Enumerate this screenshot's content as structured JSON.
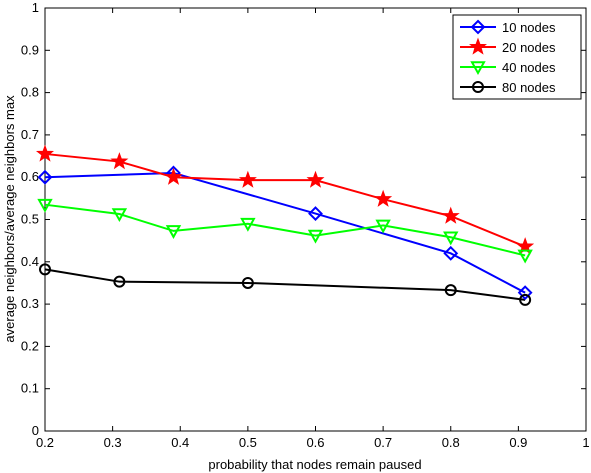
{
  "chart_data": {
    "type": "line",
    "title": "",
    "xlabel": "probability that nodes remain paused",
    "ylabel": "average neighbors/average neighbors max",
    "xlim": [
      0.2,
      1.0
    ],
    "ylim": [
      0,
      1
    ],
    "xticks": [
      "0.2",
      "0.3",
      "0.4",
      "0.5",
      "0.6",
      "0.7",
      "0.8",
      "0.9",
      "1"
    ],
    "yticks": [
      "0",
      "0.1",
      "0.2",
      "0.3",
      "0.4",
      "0.5",
      "0.6",
      "0.7",
      "0.8",
      "0.9",
      "1"
    ],
    "grid": false,
    "legend_position": "top-right",
    "x": [
      0.2,
      0.31,
      0.39,
      0.5,
      0.6,
      0.7,
      0.8,
      0.91
    ],
    "series": [
      {
        "name": "10 nodes",
        "color": "#0000ff",
        "marker": "diamond",
        "values": [
          0.6,
          null,
          0.61,
          null,
          0.514,
          null,
          0.42,
          0.327
        ]
      },
      {
        "name": "20 nodes",
        "color": "#ff0000",
        "marker": "star",
        "values": [
          0.655,
          0.637,
          0.6,
          0.593,
          0.593,
          0.548,
          0.508,
          0.436
        ]
      },
      {
        "name": "40 nodes",
        "color": "#00ff00",
        "marker": "triangle-down",
        "values": [
          0.535,
          0.513,
          0.473,
          0.49,
          0.462,
          0.486,
          0.458,
          0.415
        ]
      },
      {
        "name": "80 nodes",
        "color": "#000000",
        "marker": "circle",
        "values": [
          0.382,
          0.353,
          null,
          0.35,
          null,
          null,
          0.333,
          0.31
        ]
      }
    ]
  }
}
